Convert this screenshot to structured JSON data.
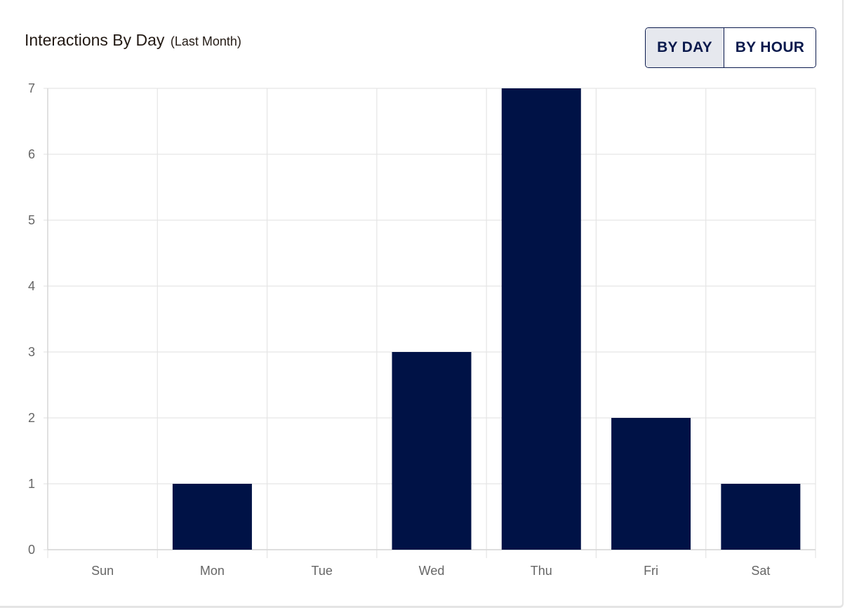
{
  "header": {
    "title": "Interactions By Day",
    "subtitle": "(Last Month)"
  },
  "toggle": {
    "by_day_label": "BY DAY",
    "by_hour_label": "BY HOUR",
    "selected": "BY DAY"
  },
  "colors": {
    "bar": "#001246",
    "grid": "#e5e5e5",
    "axis_text": "#666666",
    "accent": "#0b1a4d",
    "selected_bg": "#e6e8ee"
  },
  "chart_data": {
    "type": "bar",
    "title": "Interactions By Day",
    "subtitle": "(Last Month)",
    "categories": [
      "Sun",
      "Mon",
      "Tue",
      "Wed",
      "Thu",
      "Fri",
      "Sat"
    ],
    "values": [
      0,
      1,
      0,
      3,
      7,
      2,
      1
    ],
    "xlabel": "",
    "ylabel": "",
    "ylim": [
      0,
      7
    ],
    "yticks": [
      0,
      1,
      2,
      3,
      4,
      5,
      6,
      7
    ],
    "grid": true,
    "legend": "none"
  }
}
